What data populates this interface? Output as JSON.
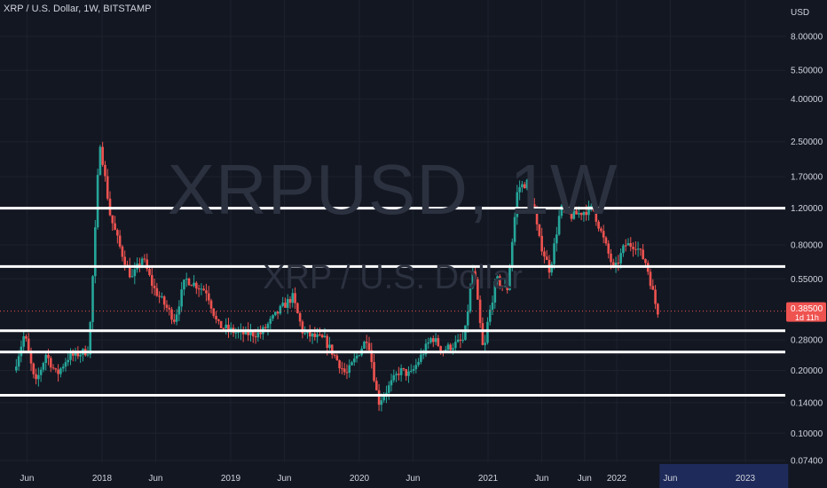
{
  "header": {
    "title": "XRP / U.S. Dollar, 1W, BITSTAMP"
  },
  "watermark": {
    "symbol": "XRPUSD, 1W",
    "name": "XRP / U.S. Dollar"
  },
  "price_axis": {
    "currency": "USD",
    "ticks": [
      {
        "label": "8.00000",
        "value": 8.0
      },
      {
        "label": "5.50000",
        "value": 5.5
      },
      {
        "label": "4.00000",
        "value": 4.0
      },
      {
        "label": "2.50000",
        "value": 2.5
      },
      {
        "label": "1.70000",
        "value": 1.7
      },
      {
        "label": "1.20000",
        "value": 1.2
      },
      {
        "label": "0.80000",
        "value": 0.8
      },
      {
        "label": "0.55000",
        "value": 0.55
      },
      {
        "label": "0.28000",
        "value": 0.28
      },
      {
        "label": "0.20000",
        "value": 0.2
      },
      {
        "label": "0.14000",
        "value": 0.14
      },
      {
        "label": "0.10000",
        "value": 0.1
      },
      {
        "label": "0.07400",
        "value": 0.074
      }
    ]
  },
  "current_price": {
    "label": "0.38500",
    "value": 0.385,
    "countdown": "1d 11h"
  },
  "time_axis": {
    "ticks": [
      {
        "label": "Jun",
        "date": "2017-06"
      },
      {
        "label": "2018",
        "date": "2018-01"
      },
      {
        "label": "Jun",
        "date": "2018-06"
      },
      {
        "label": "2019",
        "date": "2019-01"
      },
      {
        "label": "Jun",
        "date": "2019-06"
      },
      {
        "label": "2020",
        "date": "2020-01"
      },
      {
        "label": "Jun",
        "date": "2020-06"
      },
      {
        "label": "2021",
        "date": "2021-01"
      },
      {
        "label": "Jun",
        "date": "2021-06"
      },
      {
        "label": "Jun",
        "date": "2021-10"
      },
      {
        "label": "2022",
        "date": "2022-01"
      },
      {
        "label": "Jun",
        "date": "2022-06"
      },
      {
        "label": "2023",
        "date": "2023-01"
      }
    ],
    "highlight_range": [
      "2022-05",
      "2023-05"
    ]
  },
  "colors": {
    "background": "#131722",
    "up": "#26a69a",
    "down": "#ef5350",
    "grid": "#1e222d",
    "levels": "#ffffff",
    "axis_text": "#d1d4dc",
    "highlight": "#1e2a5a"
  },
  "chart_data": {
    "type": "candlestick",
    "interval": "1W",
    "scale": "log",
    "horizontal_levels": [
      1.2,
      0.63,
      0.31,
      0.245,
      0.152
    ],
    "price_path": [
      {
        "date": "2017-05",
        "price": 0.2
      },
      {
        "date": "2017-06",
        "price": 0.3
      },
      {
        "date": "2017-07",
        "price": 0.17
      },
      {
        "date": "2017-08",
        "price": 0.24
      },
      {
        "date": "2017-09",
        "price": 0.19
      },
      {
        "date": "2017-10",
        "price": 0.23
      },
      {
        "date": "2017-12",
        "price": 0.25
      },
      {
        "date": "2017-12-20",
        "price": 1.0
      },
      {
        "date": "2018-01",
        "price": 2.6
      },
      {
        "date": "2018-02",
        "price": 1.1
      },
      {
        "date": "2018-03",
        "price": 0.75
      },
      {
        "date": "2018-04",
        "price": 0.55
      },
      {
        "date": "2018-05",
        "price": 0.7
      },
      {
        "date": "2018-06",
        "price": 0.5
      },
      {
        "date": "2018-08",
        "price": 0.35
      },
      {
        "date": "2018-09",
        "price": 0.55
      },
      {
        "date": "2018-11",
        "price": 0.48
      },
      {
        "date": "2018-12",
        "price": 0.33
      },
      {
        "date": "2019-02",
        "price": 0.3
      },
      {
        "date": "2019-04",
        "price": 0.3
      },
      {
        "date": "2019-06",
        "price": 0.4
      },
      {
        "date": "2019-07",
        "price": 0.45
      },
      {
        "date": "2019-08",
        "price": 0.3
      },
      {
        "date": "2019-10",
        "price": 0.28
      },
      {
        "date": "2019-12",
        "price": 0.19
      },
      {
        "date": "2020-02",
        "price": 0.29
      },
      {
        "date": "2020-03",
        "price": 0.14
      },
      {
        "date": "2020-05",
        "price": 0.2
      },
      {
        "date": "2020-06",
        "price": 0.19
      },
      {
        "date": "2020-08",
        "price": 0.29
      },
      {
        "date": "2020-09",
        "price": 0.25
      },
      {
        "date": "2020-11",
        "price": 0.28
      },
      {
        "date": "2020-11-25",
        "price": 0.6
      },
      {
        "date": "2020-12",
        "price": 0.55
      },
      {
        "date": "2020-12-28",
        "price": 0.22
      },
      {
        "date": "2021-01",
        "price": 0.3
      },
      {
        "date": "2021-02",
        "price": 0.55
      },
      {
        "date": "2021-03",
        "price": 0.48
      },
      {
        "date": "2021-04",
        "price": 1.5
      },
      {
        "date": "2021-05",
        "price": 1.6
      },
      {
        "date": "2021-06",
        "price": 0.85
      },
      {
        "date": "2021-07",
        "price": 0.6
      },
      {
        "date": "2021-08",
        "price": 1.2
      },
      {
        "date": "2021-09",
        "price": 1.1
      },
      {
        "date": "2021-11",
        "price": 1.2
      },
      {
        "date": "2021-12",
        "price": 0.85
      },
      {
        "date": "2022-01",
        "price": 0.6
      },
      {
        "date": "2022-02",
        "price": 0.8
      },
      {
        "date": "2022-03",
        "price": 0.8
      },
      {
        "date": "2022-04",
        "price": 0.65
      },
      {
        "date": "2022-05",
        "price": 0.385
      }
    ]
  }
}
